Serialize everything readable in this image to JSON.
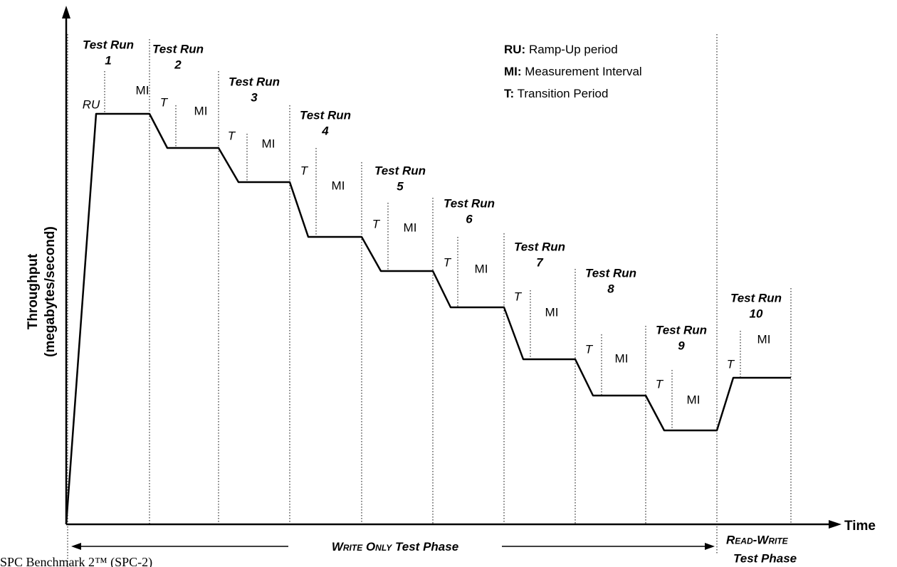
{
  "y_axis_label": [
    "Throughput",
    "(megabytes/second)"
  ],
  "x_axis_label": "Time",
  "legend": [
    {
      "key": "RU:",
      "text": "Ramp-Up period"
    },
    {
      "key": "MI:",
      "text": "Measurement Interval"
    },
    {
      "key": "T:",
      "text": "Transition Period"
    }
  ],
  "runs": [
    {
      "title": "Test Run",
      "number": "1",
      "start_label": "RU",
      "interval_label": "MI"
    },
    {
      "title": "Test Run",
      "number": "2",
      "start_label": "T",
      "interval_label": "MI"
    },
    {
      "title": "Test Run",
      "number": "3",
      "start_label": "T",
      "interval_label": "MI"
    },
    {
      "title": "Test Run",
      "number": "4",
      "start_label": "T",
      "interval_label": "MI"
    },
    {
      "title": "Test Run",
      "number": "5",
      "start_label": "T",
      "interval_label": "MI"
    },
    {
      "title": "Test Run",
      "number": "6",
      "start_label": "T",
      "interval_label": "MI"
    },
    {
      "title": "Test Run",
      "number": "7",
      "start_label": "T",
      "interval_label": "MI"
    },
    {
      "title": "Test Run",
      "number": "8",
      "start_label": "T",
      "interval_label": "MI"
    },
    {
      "title": "Test Run",
      "number": "9",
      "start_label": "T",
      "interval_label": "MI"
    },
    {
      "title": "Test Run",
      "number": "10",
      "start_label": "T",
      "interval_label": "MI"
    }
  ],
  "phases": [
    {
      "name": "Write Only",
      "suffix": "Test Phase"
    },
    {
      "name": "Read-Write",
      "suffix": "Test Phase"
    }
  ],
  "footer": "SPC Benchmark 2™ (SPC-2)"
}
